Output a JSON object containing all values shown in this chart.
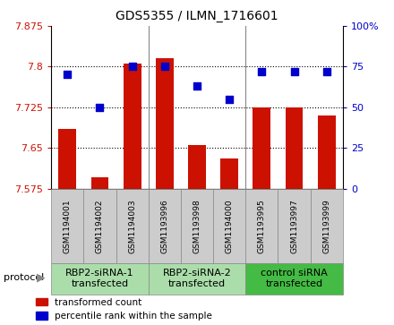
{
  "title": "GDS5355 / ILMN_1716601",
  "samples": [
    "GSM1194001",
    "GSM1194002",
    "GSM1194003",
    "GSM1193996",
    "GSM1193998",
    "GSM1194000",
    "GSM1193995",
    "GSM1193997",
    "GSM1193999"
  ],
  "red_values": [
    7.685,
    7.595,
    7.805,
    7.815,
    7.655,
    7.63,
    7.725,
    7.725,
    7.71
  ],
  "blue_values": [
    70,
    50,
    75,
    75,
    63,
    55,
    72,
    72,
    72
  ],
  "ylim_left": [
    7.575,
    7.875
  ],
  "ylim_right": [
    0,
    100
  ],
  "yticks_left": [
    7.575,
    7.65,
    7.725,
    7.8,
    7.875
  ],
  "yticks_right": [
    0,
    25,
    50,
    75,
    100
  ],
  "ytick_labels_left": [
    "7.575",
    "7.65",
    "7.725",
    "7.8",
    "7.875"
  ],
  "ytick_labels_right": [
    "0",
    "25",
    "50",
    "75",
    "100%"
  ],
  "hlines": [
    7.65,
    7.725,
    7.8
  ],
  "groups": [
    {
      "label": "RBP2-siRNA-1\ntransfected",
      "start": 0,
      "end": 3,
      "color": "#aaddaa"
    },
    {
      "label": "RBP2-siRNA-2\ntransfected",
      "start": 3,
      "end": 6,
      "color": "#aaddaa"
    },
    {
      "label": "control siRNA\ntransfected",
      "start": 6,
      "end": 9,
      "color": "#44bb44"
    }
  ],
  "sample_box_color": "#cccccc",
  "red_color": "#cc1100",
  "blue_color": "#0000cc",
  "bar_width": 0.55,
  "protocol_label": "protocol",
  "legend_red": "transformed count",
  "legend_blue": "percentile rank within the sample",
  "title_fontsize": 10,
  "tick_fontsize": 8,
  "sample_fontsize": 6.5,
  "group_fontsize": 8
}
